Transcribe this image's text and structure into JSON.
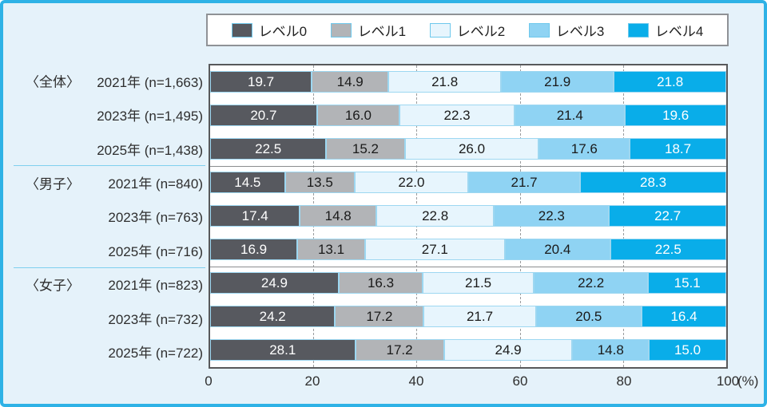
{
  "legend": {
    "items": [
      {
        "label": "レベル0",
        "color": "#57595f"
      },
      {
        "label": "レベル1",
        "color": "#b2b4b7"
      },
      {
        "label": "レベル2",
        "color": "#e7f5fd"
      },
      {
        "label": "レベル3",
        "color": "#8fd3f3"
      },
      {
        "label": "レベル4",
        "color": "#09ade9"
      }
    ]
  },
  "chart_data": {
    "type": "bar",
    "variant": "horizontal-stacked",
    "series_labels": [
      "レベル0",
      "レベル1",
      "レベル2",
      "レベル3",
      "レベル4"
    ],
    "series_colors": [
      "#57595f",
      "#b2b4b7",
      "#e7f5fd",
      "#8fd3f3",
      "#09ade9"
    ],
    "value_text_colors": [
      "#ffffff",
      "#1a1a1a",
      "#1a1a1a",
      "#1a1a1a",
      "#ffffff"
    ],
    "groups": [
      {
        "name": "〈全体〉",
        "rows": [
          {
            "label": "2021年 (n=1,663)",
            "values": [
              19.7,
              14.9,
              21.8,
              21.9,
              21.8
            ]
          },
          {
            "label": "2023年 (n=1,495)",
            "values": [
              20.7,
              16.0,
              22.3,
              21.4,
              19.6
            ]
          },
          {
            "label": "2025年 (n=1,438)",
            "values": [
              22.5,
              15.2,
              26.0,
              17.6,
              18.7
            ]
          }
        ]
      },
      {
        "name": "〈男子〉",
        "rows": [
          {
            "label": "2021年 (n=840)",
            "values": [
              14.5,
              13.5,
              22.0,
              21.7,
              28.3
            ]
          },
          {
            "label": "2023年 (n=763)",
            "values": [
              17.4,
              14.8,
              22.8,
              22.3,
              22.7
            ]
          },
          {
            "label": "2025年 (n=716)",
            "values": [
              16.9,
              13.1,
              27.1,
              20.4,
              22.5
            ]
          }
        ]
      },
      {
        "name": "〈女子〉",
        "rows": [
          {
            "label": "2021年 (n=823)",
            "values": [
              24.9,
              16.3,
              21.5,
              22.2,
              15.1
            ]
          },
          {
            "label": "2023年 (n=732)",
            "values": [
              24.2,
              17.2,
              21.7,
              20.5,
              16.4
            ]
          },
          {
            "label": "2025年 (n=722)",
            "values": [
              28.1,
              17.2,
              24.9,
              14.8,
              15.0
            ]
          }
        ]
      }
    ],
    "x_ticks": [
      0,
      20,
      40,
      60,
      80,
      100
    ],
    "x_unit": "(%)",
    "xlim": [
      0,
      100
    ],
    "gridlines_at": [
      20,
      40,
      60,
      80
    ],
    "grid": true,
    "legend_position": "top"
  }
}
